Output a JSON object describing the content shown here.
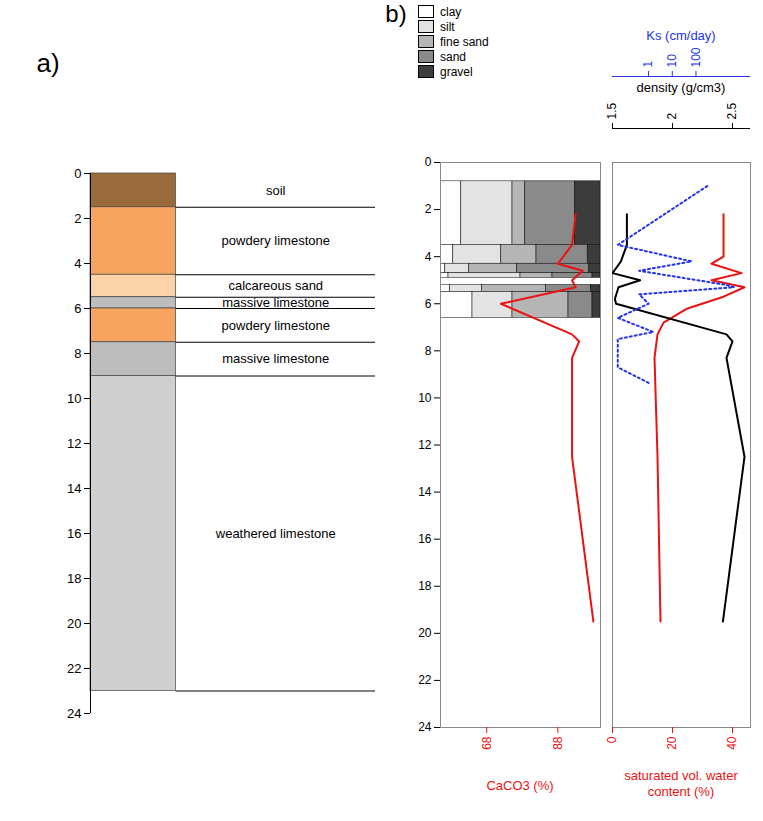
{
  "chart_data": [
    {
      "type": "strat_column",
      "title": "a)",
      "ylim": [
        0,
        24
      ],
      "yticks": [
        0,
        2,
        4,
        6,
        8,
        10,
        12,
        14,
        16,
        18,
        20,
        22,
        24
      ],
      "layers": [
        {
          "name": "soil",
          "top": 0,
          "bottom": 1.5,
          "color": "#9b6a3a"
        },
        {
          "name": "powdery limestone",
          "top": 1.5,
          "bottom": 4.5,
          "color": "#f7a460"
        },
        {
          "name": "calcareous sand",
          "top": 4.5,
          "bottom": 5.5,
          "color": "#fbd3a8"
        },
        {
          "name": "massive limestone",
          "top": 5.5,
          "bottom": 6.0,
          "color": "#bdbdbd"
        },
        {
          "name": "powdery limestone",
          "top": 6.0,
          "bottom": 7.5,
          "color": "#f7a460"
        },
        {
          "name": "massive limestone",
          "top": 7.5,
          "bottom": 9.0,
          "color": "#bdbdbd"
        },
        {
          "name": "weathered limestone",
          "top": 9.0,
          "bottom": 23.0,
          "color": "#cfcfcf"
        }
      ]
    },
    {
      "type": "profile",
      "title": "b)",
      "ylim": [
        0,
        24
      ],
      "yticks": [
        0,
        2,
        4,
        6,
        8,
        10,
        12,
        14,
        16,
        18,
        20,
        22,
        24
      ],
      "legend": "top-left",
      "grain_size": {
        "type": "bar",
        "orientation": "horizontal",
        "stacked": true,
        "tick_labels": false,
        "xlim": [
          0,
          100
        ],
        "intervals": [
          [
            0.8,
            3.5
          ],
          [
            3.5,
            4.3
          ],
          [
            4.3,
            4.7
          ],
          [
            4.7,
            4.9
          ],
          [
            5.2,
            5.5
          ],
          [
            5.5,
            6.6
          ]
        ],
        "series": [
          {
            "name": "clay",
            "color": "#ffffff",
            "values": [
              13,
              8,
              3,
              5,
              6,
              20
            ]
          },
          {
            "name": "silt",
            "color": "#e3e3e3",
            "values": [
              32,
              30,
              15,
              45,
              20,
              25
            ]
          },
          {
            "name": "fine sand",
            "color": "#b5b5b5",
            "values": [
              8,
              22,
              30,
              20,
              40,
              35
            ]
          },
          {
            "name": "sand",
            "color": "#8a8a8a",
            "values": [
              31,
              32,
              45,
              25,
              28,
              15
            ]
          },
          {
            "name": "gravel",
            "color": "#3c3c3c",
            "values": [
              16,
              8,
              7,
              5,
              6,
              5
            ]
          }
        ]
      },
      "series": [
        {
          "name": "CaCO3 (%)",
          "type": "line",
          "color": "#ee1111",
          "xlim": [
            55,
            100
          ],
          "xticks": [
            68,
            88
          ],
          "x": [
            93,
            92,
            88,
            95,
            92,
            93,
            72,
            92,
            94,
            92,
            92,
            98
          ],
          "y": [
            2.2,
            3.5,
            4.3,
            4.6,
            5.0,
            5.3,
            6.0,
            7.3,
            7.6,
            8.3,
            12.5,
            19.5
          ]
        }
      ]
    },
    {
      "type": "profile",
      "tick_labels": "x",
      "ylim": [
        0,
        24
      ],
      "series": [
        {
          "name": "saturated vol. water content (%)",
          "type": "line",
          "color": "#ee1111",
          "line_style": "solid",
          "xlim": [
            0,
            46
          ],
          "xticks": [
            0,
            20,
            40
          ],
          "x": [
            37,
            37,
            33,
            43,
            33,
            44,
            37,
            25,
            17,
            15,
            14,
            15,
            16
          ],
          "y": [
            2.2,
            4.0,
            4.3,
            4.7,
            5.0,
            5.3,
            5.7,
            6.2,
            6.8,
            7.3,
            8.3,
            12.5,
            19.5
          ]
        },
        {
          "name": "density (g/cm3)",
          "type": "line",
          "color": "#000000",
          "line_style": "solid",
          "axis": "x2",
          "xlim": [
            1.5,
            2.65
          ],
          "xticks": [
            1.5,
            2,
            2.5
          ],
          "x": [
            1.62,
            1.62,
            1.57,
            1.5,
            1.73,
            1.55,
            1.52,
            1.53,
            2.45,
            2.5,
            2.45,
            2.6,
            2.42
          ],
          "y": [
            2.2,
            3.5,
            4.2,
            4.7,
            5.0,
            5.3,
            5.8,
            6.0,
            7.3,
            7.6,
            8.3,
            12.5,
            19.5
          ]
        },
        {
          "name": "Ks (cm/day)",
          "type": "line",
          "color": "#2233ee",
          "line_style": "dotted",
          "axis": "x2",
          "log": "x",
          "xlim": [
            0.03,
            20000
          ],
          "xticks": [
            1,
            10,
            100
          ],
          "x": [
            300,
            0.05,
            65,
            0.4,
            1900,
            4000,
            0.4,
            1,
            0.05,
            1.6,
            0.05,
            0.05,
            0.05,
            1.2
          ],
          "y": [
            1.0,
            3.5,
            4.2,
            4.6,
            5.2,
            5.3,
            5.6,
            6.0,
            6.6,
            7.2,
            7.5,
            8.0,
            8.7,
            9.4
          ]
        }
      ]
    }
  ]
}
